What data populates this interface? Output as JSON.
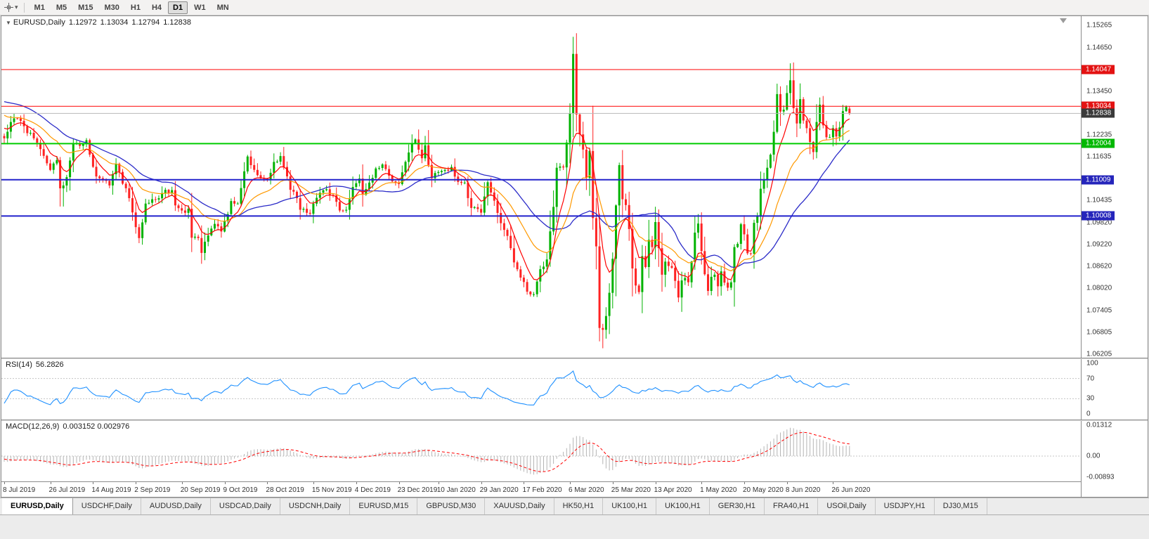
{
  "icons": {
    "collapse_arrow": "▼",
    "toolbar_caret": "▾"
  },
  "colors": {
    "candle_up": "#00b200",
    "candle_down": "#ff2222",
    "ma_fast": "#ff0000",
    "ma_medium": "#ff9900",
    "ma_slow": "#2b2bc8",
    "rsi_line": "#1e90ff",
    "macd_hist": "#b4b4b4",
    "macd_signal": "#ff0000"
  },
  "toolbar": {
    "timeframes": [
      "M1",
      "M5",
      "M15",
      "M30",
      "H1",
      "H4",
      "D1",
      "W1",
      "MN"
    ],
    "active_timeframe": "D1"
  },
  "chart": {
    "symbol_label": "EURUSD,Daily",
    "ohlc": {
      "open": "1.12972",
      "high": "1.13034",
      "low": "1.12794",
      "close": "1.12838"
    },
    "y_range": {
      "top": 1.1552,
      "bottom": 1.061
    },
    "y_ticks": [
      1.15265,
      1.1465,
      1.1345,
      1.12235,
      1.11635,
      1.10435,
      1.0982,
      1.0922,
      1.0862,
      1.0802,
      1.07405,
      1.06805,
      1.06205
    ],
    "levels": [
      {
        "price": 1.14047,
        "label": "1.14047",
        "line_color": "#ff0000",
        "line_width": 1,
        "badge_color": "#e31212"
      },
      {
        "price": 1.13034,
        "label": "1.13034",
        "line_color": "#ff0000",
        "line_width": 1,
        "badge_color": "#e31212"
      },
      {
        "price": 1.12838,
        "label": "1.12838",
        "line_color": "#b8b8b8",
        "line_width": 1,
        "badge_color": "#3a3a3a"
      },
      {
        "price": 1.12004,
        "label": "1.12004",
        "line_color": "#00cc00",
        "line_width": 2,
        "badge_color": "#00b800"
      },
      {
        "price": 1.11009,
        "label": "1.11009",
        "line_color": "#2222cc",
        "line_width": 2,
        "badge_color": "#2525bb"
      },
      {
        "price": 1.10008,
        "label": "1.10008",
        "line_color": "#2222cc",
        "line_width": 2,
        "badge_color": "#2525bb"
      }
    ],
    "x_labels": [
      {
        "text": "8 Jul 2019",
        "idx": 0
      },
      {
        "text": "26 Jul 2019",
        "idx": 14
      },
      {
        "text": "14 Aug 2019",
        "idx": 27
      },
      {
        "text": "2 Sep 2019",
        "idx": 40
      },
      {
        "text": "20 Sep 2019",
        "idx": 54
      },
      {
        "text": "9 Oct 2019",
        "idx": 67
      },
      {
        "text": "28 Oct 2019",
        "idx": 80
      },
      {
        "text": "15 Nov 2019",
        "idx": 94
      },
      {
        "text": "4 Dec 2019",
        "idx": 107
      },
      {
        "text": "23 Dec 2019",
        "idx": 120
      },
      {
        "text": "10 Jan 2020",
        "idx": 132
      },
      {
        "text": "29 Jan 2020",
        "idx": 145
      },
      {
        "text": "17 Feb 2020",
        "idx": 158
      },
      {
        "text": "6 Mar 2020",
        "idx": 172
      },
      {
        "text": "25 Mar 2020",
        "idx": 185
      },
      {
        "text": "13 Apr 2020",
        "idx": 198
      },
      {
        "text": "1 May 2020",
        "idx": 212
      },
      {
        "text": "20 May 2020",
        "idx": 225
      },
      {
        "text": "8 Jun 2020",
        "idx": 238
      },
      {
        "text": "26 Jun 2020",
        "idx": 252
      }
    ],
    "n_candles": 258,
    "price_anchors": [
      [
        -50,
        1.122
      ],
      [
        -42,
        1.1245
      ],
      [
        -35,
        1.129
      ],
      [
        -28,
        1.133
      ],
      [
        -22,
        1.139
      ],
      [
        -18,
        1.137
      ],
      [
        -12,
        1.13
      ],
      [
        -7,
        1.1286
      ],
      [
        -3,
        1.1248
      ],
      [
        0,
        1.1215
      ],
      [
        2,
        1.126
      ],
      [
        4,
        1.127
      ],
      [
        9,
        1.1215
      ],
      [
        13,
        1.1146
      ],
      [
        14,
        1.1128
      ],
      [
        16,
        1.1155
      ],
      [
        17,
        1.1077
      ],
      [
        18,
        1.1085
      ],
      [
        19,
        1.1108
      ],
      [
        21,
        1.12
      ],
      [
        24,
        1.12
      ],
      [
        25,
        1.121
      ],
      [
        26,
        1.117
      ],
      [
        28,
        1.111
      ],
      [
        30,
        1.11
      ],
      [
        32,
        1.1085
      ],
      [
        34,
        1.1145
      ],
      [
        36,
        1.109
      ],
      [
        38,
        1.105
      ],
      [
        40,
        1.097
      ],
      [
        41,
        1.094
      ],
      [
        43,
        1.1035
      ],
      [
        45,
        1.1047
      ],
      [
        48,
        1.1064
      ],
      [
        49,
        1.1073
      ],
      [
        51,
        1.1072
      ],
      [
        52,
        1.103
      ],
      [
        54,
        1.1016
      ],
      [
        56,
        1.1021
      ],
      [
        57,
        1.0941
      ],
      [
        59,
        1.094
      ],
      [
        60,
        1.0899
      ],
      [
        61,
        1.093
      ],
      [
        63,
        1.0966
      ],
      [
        64,
        1.0979
      ],
      [
        66,
        1.0958
      ],
      [
        68,
        1.1006
      ],
      [
        69,
        1.1042
      ],
      [
        71,
        1.1035
      ],
      [
        73,
        1.1124
      ],
      [
        74,
        1.1165
      ],
      [
        76,
        1.1128
      ],
      [
        78,
        1.1105
      ],
      [
        80,
        1.11
      ],
      [
        82,
        1.115
      ],
      [
        84,
        1.1166
      ],
      [
        86,
        1.111
      ],
      [
        87,
        1.1073
      ],
      [
        89,
        1.105
      ],
      [
        90,
        1.1018
      ],
      [
        93,
        1.1007
      ],
      [
        95,
        1.1051
      ],
      [
        97,
        1.1072
      ],
      [
        100,
        1.1058
      ],
      [
        102,
        1.1016
      ],
      [
        104,
        1.1018
      ],
      [
        106,
        1.1081
      ],
      [
        108,
        1.1104
      ],
      [
        109,
        1.106
      ],
      [
        111,
        1.1093
      ],
      [
        113,
        1.1132
      ],
      [
        115,
        1.1143
      ],
      [
        117,
        1.1112
      ],
      [
        120,
        1.1089
      ],
      [
        123,
        1.1176
      ],
      [
        125,
        1.1212
      ],
      [
        127,
        1.116
      ],
      [
        128,
        1.1196
      ],
      [
        130,
        1.1105
      ],
      [
        132,
        1.1122
      ],
      [
        134,
        1.1128
      ],
      [
        136,
        1.1136
      ],
      [
        138,
        1.1095
      ],
      [
        140,
        1.1093
      ],
      [
        142,
        1.1023
      ],
      [
        145,
        1.101
      ],
      [
        147,
        1.1094
      ],
      [
        149,
        1.1043
      ],
      [
        151,
        1.0981
      ],
      [
        153,
        1.0946
      ],
      [
        155,
        1.0873
      ],
      [
        157,
        1.0831
      ],
      [
        159,
        1.0792
      ],
      [
        161,
        1.0785
      ],
      [
        163,
        1.0854
      ],
      [
        165,
        1.0881
      ],
      [
        167,
        1.1026
      ],
      [
        168,
        1.1134
      ],
      [
        170,
        1.1135
      ],
      [
        172,
        1.1284
      ],
      [
        173,
        1.1448
      ],
      [
        174,
        1.1281
      ],
      [
        176,
        1.1184
      ],
      [
        177,
        1.1106
      ],
      [
        178,
        1.118
      ],
      [
        179,
        1.0995
      ],
      [
        180,
        1.0917
      ],
      [
        181,
        1.0692
      ],
      [
        182,
        1.0687
      ],
      [
        183,
        1.0725
      ],
      [
        184,
        1.0789
      ],
      [
        185,
        1.0883
      ],
      [
        186,
        1.103
      ],
      [
        187,
        1.1141
      ],
      [
        188,
        1.1047
      ],
      [
        189,
        1.1031
      ],
      [
        190,
        1.0965
      ],
      [
        191,
        1.0856
      ],
      [
        192,
        1.0809
      ],
      [
        193,
        1.0791
      ],
      [
        194,
        1.089
      ],
      [
        195,
        1.086
      ],
      [
        196,
        1.0935
      ],
      [
        197,
        1.0915
      ],
      [
        198,
        1.0984
      ],
      [
        199,
        1.0912
      ],
      [
        200,
        1.0839
      ],
      [
        201,
        1.0875
      ],
      [
        202,
        1.0863
      ],
      [
        203,
        1.0858
      ],
      [
        204,
        1.0822
      ],
      [
        205,
        1.0776
      ],
      [
        206,
        1.0823
      ],
      [
        207,
        1.083
      ],
      [
        208,
        1.0818
      ],
      [
        209,
        1.0875
      ],
      [
        210,
        1.0955
      ],
      [
        211,
        1.098
      ],
      [
        212,
        1.0904
      ],
      [
        213,
        1.084
      ],
      [
        214,
        1.0794
      ],
      [
        215,
        1.0833
      ],
      [
        216,
        1.0839
      ],
      [
        217,
        1.0807
      ],
      [
        218,
        1.0848
      ],
      [
        219,
        1.0817
      ],
      [
        220,
        1.0803
      ],
      [
        221,
        1.0818
      ],
      [
        222,
        1.0915
      ],
      [
        223,
        1.0924
      ],
      [
        224,
        1.0978
      ],
      [
        225,
        1.095
      ],
      [
        226,
        1.0898
      ],
      [
        227,
        1.0897
      ],
      [
        228,
        1.0982
      ],
      [
        229,
        1.1002
      ],
      [
        230,
        1.1076
      ],
      [
        231,
        1.1101
      ],
      [
        232,
        1.1134
      ],
      [
        233,
        1.117
      ],
      [
        234,
        1.1233
      ],
      [
        235,
        1.1337
      ],
      [
        236,
        1.1289
      ],
      [
        237,
        1.1294
      ],
      [
        238,
        1.134
      ],
      [
        239,
        1.1375
      ],
      [
        240,
        1.1298
      ],
      [
        241,
        1.1256
      ],
      [
        242,
        1.1323
      ],
      [
        243,
        1.1264
      ],
      [
        244,
        1.1243
      ],
      [
        245,
        1.1205
      ],
      [
        246,
        1.1177
      ],
      [
        247,
        1.126
      ],
      [
        248,
        1.1308
      ],
      [
        249,
        1.1251
      ],
      [
        250,
        1.1218
      ],
      [
        251,
        1.1218
      ],
      [
        252,
        1.1243
      ],
      [
        253,
        1.122
      ],
      [
        254,
        1.1245
      ],
      [
        255,
        1.129
      ],
      [
        256,
        1.1302
      ],
      [
        257,
        1.12838
      ]
    ],
    "candle_overrides": {
      "18": {
        "l": 1.1027
      },
      "41": {
        "l": 1.0926
      },
      "61": {
        "l": 1.0879
      },
      "161": {
        "l": 1.0778
      },
      "173": {
        "h": 1.1495
      },
      "181": {
        "l": 1.0655
      },
      "182": {
        "l": 1.0636
      },
      "187": {
        "h": 1.1148
      },
      "239": {
        "h": 1.1422
      },
      "257": {
        "o": 1.12972,
        "h": 1.13034,
        "l": 1.12794,
        "c": 1.12838
      }
    }
  },
  "rsi": {
    "title_label": "RSI(14)",
    "value": "56.2826",
    "period": 14,
    "levels": [
      70,
      30
    ],
    "ticks": [
      {
        "v": 100,
        "label": "100"
      },
      {
        "v": 70,
        "label": "70"
      },
      {
        "v": 30,
        "label": "30"
      },
      {
        "v": 0,
        "label": "0"
      }
    ]
  },
  "macd": {
    "title_label": "MACD(12,26,9)",
    "values": "0.003152 0.002976",
    "scale_top": 0.01312,
    "scale_bottom": -0.00893,
    "ticks": [
      {
        "v": 0.01312,
        "label": "0.01312"
      },
      {
        "v": 0,
        "label": "0.00"
      },
      {
        "v": -0.00893,
        "label": "-0.00893"
      }
    ]
  },
  "tabs": [
    {
      "label": "EURUSD,Daily",
      "active": true
    },
    {
      "label": "USDCHF,Daily"
    },
    {
      "label": "AUDUSD,Daily"
    },
    {
      "label": "USDCAD,Daily"
    },
    {
      "label": "USDCNH,Daily"
    },
    {
      "label": "EURUSD,M15"
    },
    {
      "label": "GBPUSD,M30"
    },
    {
      "label": "XAUUSD,Daily"
    },
    {
      "label": "HK50,H1"
    },
    {
      "label": "UK100,H1"
    },
    {
      "label": "UK100,H1"
    },
    {
      "label": "GER30,H1"
    },
    {
      "label": "FRA40,H1"
    },
    {
      "label": "USOil,Daily"
    },
    {
      "label": "USDJPY,H1"
    },
    {
      "label": "DJ30,M15"
    }
  ]
}
